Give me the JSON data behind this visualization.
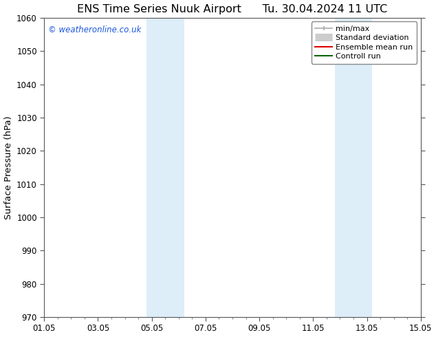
{
  "title_left": "ENS Time Series Nuuk Airport",
  "title_right": "Tu. 30.04.2024 11 UTC",
  "ylabel": "Surface Pressure (hPa)",
  "ylim": [
    970,
    1060
  ],
  "yticks": [
    970,
    980,
    990,
    1000,
    1010,
    1020,
    1030,
    1040,
    1050,
    1060
  ],
  "xtick_labels": [
    "01.05",
    "03.05",
    "05.05",
    "07.05",
    "09.05",
    "11.05",
    "13.05",
    "15.05"
  ],
  "xtick_positions": [
    0,
    2,
    4,
    6,
    8,
    10,
    12,
    14
  ],
  "xlim": [
    0,
    14
  ],
  "shaded_regions": [
    {
      "x_start": 3.8,
      "x_end": 5.2
    },
    {
      "x_start": 10.8,
      "x_end": 12.2
    }
  ],
  "shaded_color": "#ddeef8",
  "background_color": "#ffffff",
  "watermark_text": "© weatheronline.co.uk",
  "watermark_color": "#1a56db",
  "legend_entries": [
    {
      "label": "min/max",
      "color": "#aaaaaa",
      "linewidth": 1.2,
      "linestyle": "-",
      "type": "line_caps"
    },
    {
      "label": "Standard deviation",
      "color": "#cccccc",
      "linewidth": 8,
      "linestyle": "-",
      "type": "thick"
    },
    {
      "label": "Ensemble mean run",
      "color": "#dd0000",
      "linewidth": 1.5,
      "linestyle": "-",
      "type": "line"
    },
    {
      "label": "Controll run",
      "color": "#006600",
      "linewidth": 1.5,
      "linestyle": "-",
      "type": "line"
    }
  ],
  "title_fontsize": 11.5,
  "ylabel_fontsize": 9.5,
  "tick_fontsize": 8.5,
  "watermark_fontsize": 8.5,
  "legend_fontsize": 8.0
}
